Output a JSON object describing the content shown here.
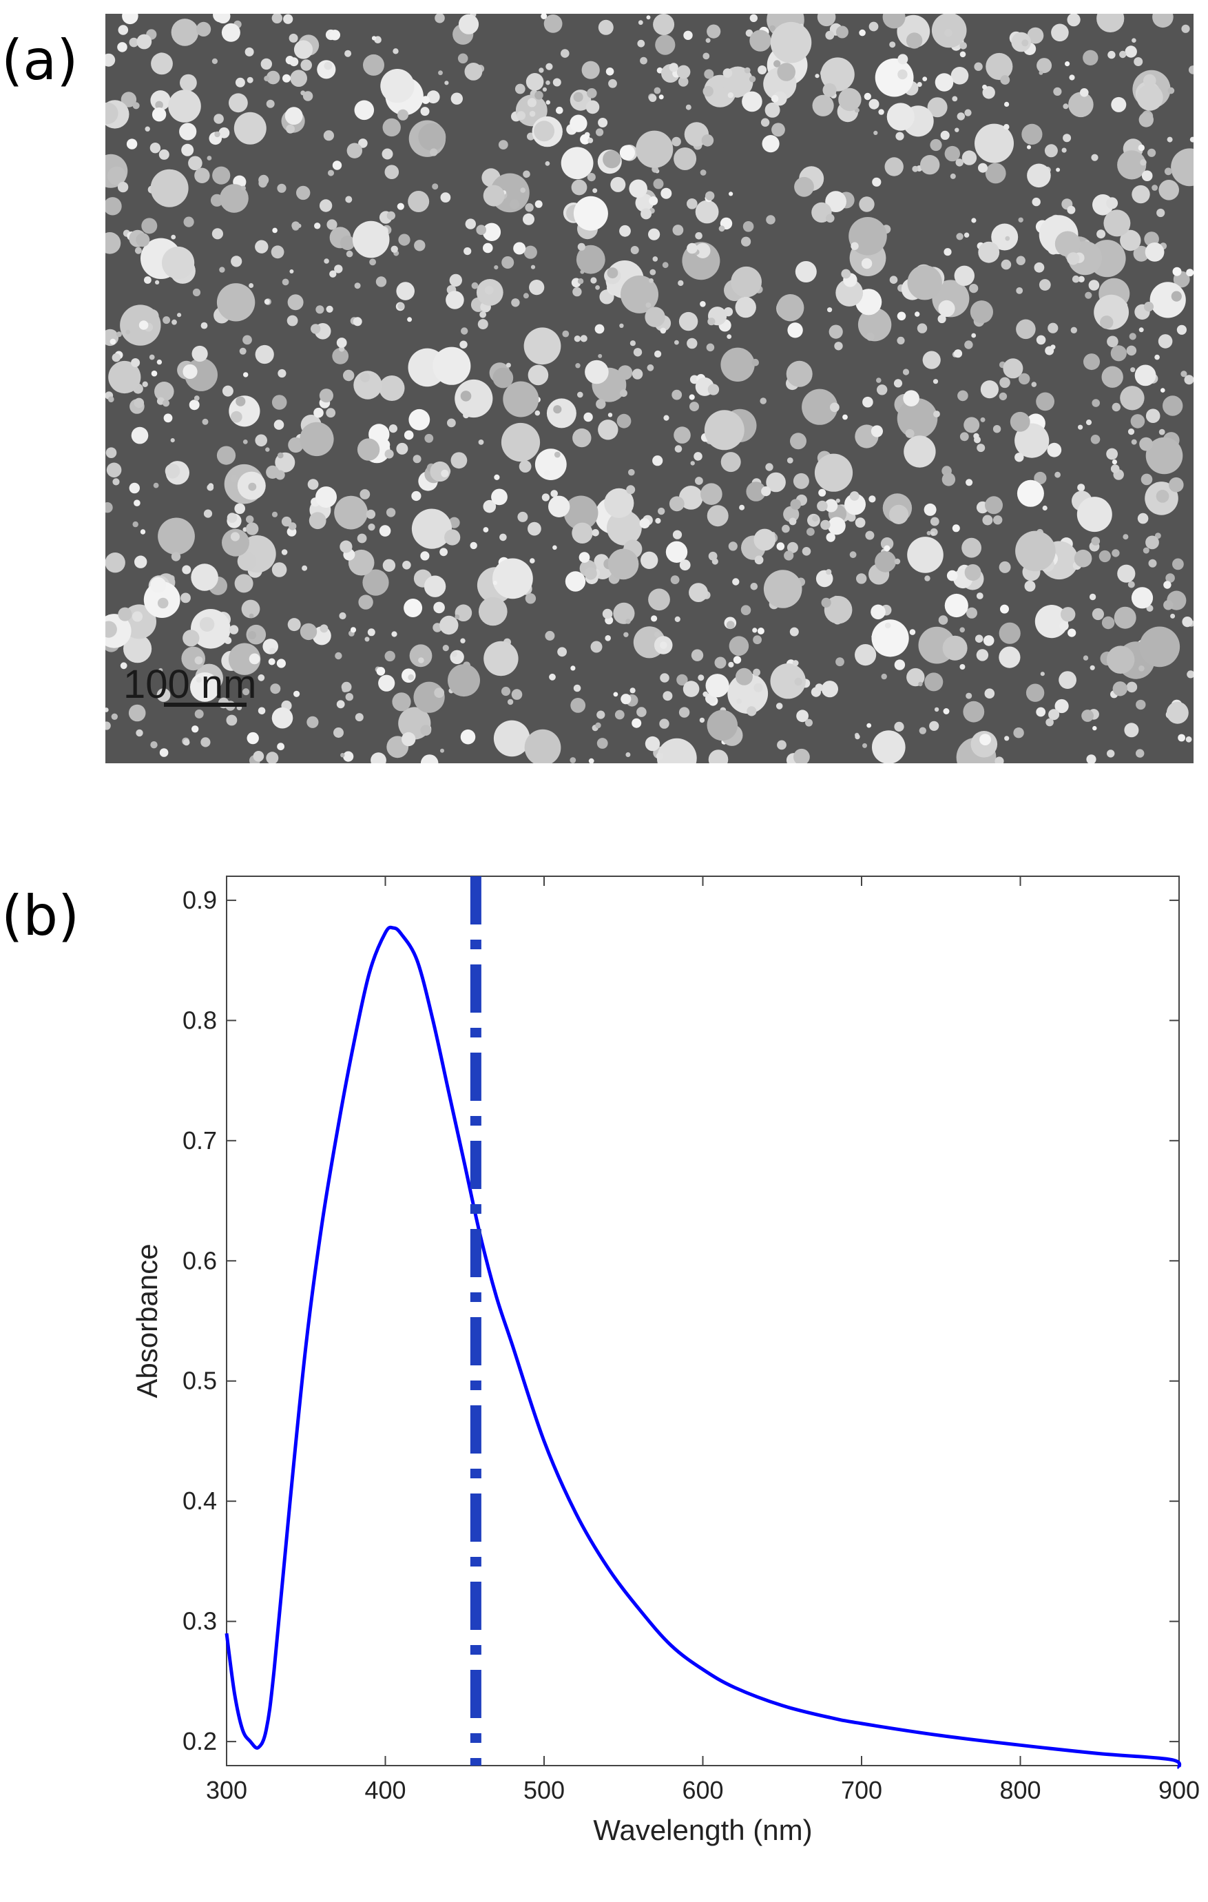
{
  "panels": {
    "a_label": "(a)",
    "b_label": "(b)"
  },
  "sem_image": {
    "scale_bar_label": "100 nm"
  },
  "colors": {
    "curve": "#0000ff",
    "marker_line": "#1f3fbf",
    "axis": "#444444"
  },
  "chart_data": {
    "type": "line",
    "xlabel": "Wavelength (nm)",
    "ylabel": "Absorbance",
    "xlim": [
      300,
      900
    ],
    "ylim": [
      0.18,
      0.92
    ],
    "xticks": [
      300,
      400,
      500,
      600,
      700,
      800,
      900
    ],
    "yticks": [
      0.2,
      0.3,
      0.4,
      0.5,
      0.6,
      0.7,
      0.8,
      0.9
    ],
    "grid": false,
    "series": [
      {
        "x": [
          300,
          305,
          310,
          315,
          320,
          325,
          330,
          340,
          350,
          360,
          370,
          380,
          390,
          400,
          405,
          410,
          420,
          430,
          440,
          450,
          460,
          470,
          480,
          500,
          520,
          540,
          560,
          580,
          600,
          620,
          650,
          680,
          700,
          750,
          800,
          850,
          895,
          900
        ],
        "y": [
          0.29,
          0.24,
          0.21,
          0.2,
          0.195,
          0.21,
          0.26,
          0.4,
          0.53,
          0.63,
          0.71,
          0.78,
          0.84,
          0.873,
          0.877,
          0.872,
          0.85,
          0.8,
          0.74,
          0.68,
          0.62,
          0.57,
          0.53,
          0.45,
          0.39,
          0.345,
          0.31,
          0.28,
          0.26,
          0.245,
          0.23,
          0.22,
          0.215,
          0.205,
          0.197,
          0.19,
          0.185,
          0.178
        ]
      }
    ],
    "vertical_marker": {
      "x": 457,
      "style": "dash-dot"
    }
  }
}
